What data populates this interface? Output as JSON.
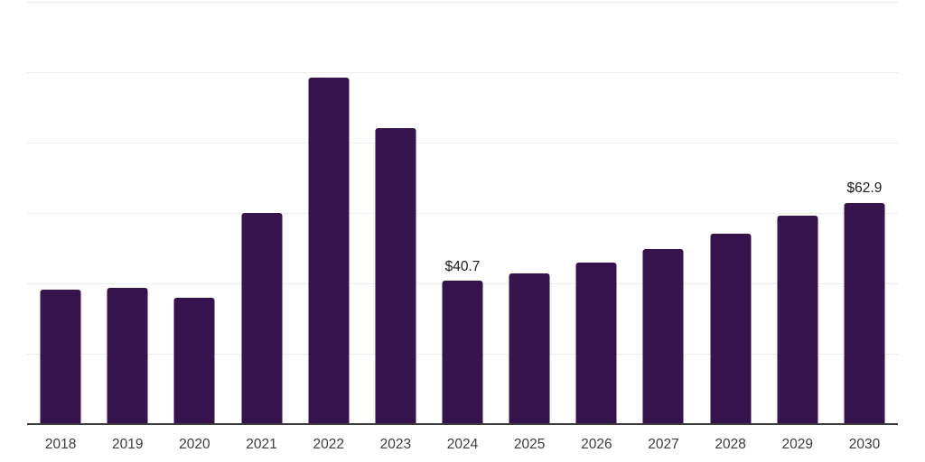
{
  "chart_data": {
    "type": "bar",
    "title": "",
    "xlabel": "",
    "ylabel": "",
    "categories": [
      "2018",
      "2019",
      "2020",
      "2021",
      "2022",
      "2023",
      "2024",
      "2025",
      "2026",
      "2027",
      "2028",
      "2029",
      "2030"
    ],
    "values": [
      38.3,
      38.8,
      35.9,
      60.0,
      98.5,
      84.2,
      40.7,
      42.9,
      46.0,
      49.7,
      54.1,
      59.2,
      62.9
    ],
    "bar_labels": [
      "",
      "",
      "",
      "",
      "",
      "",
      "$40.7",
      "",
      "",
      "",
      "",
      "",
      "$62.9"
    ],
    "ylim": [
      0,
      120
    ],
    "grid_step": 20,
    "grid": true,
    "legend": false,
    "y_tick_labels_visible": false,
    "colors": {
      "bar": "#36134D",
      "gridline": "#ececec",
      "axis": "#3a3a3a",
      "tick_label": "#3d3d3d",
      "value_label": "#1b1b1b",
      "background": "#ffffff"
    }
  }
}
